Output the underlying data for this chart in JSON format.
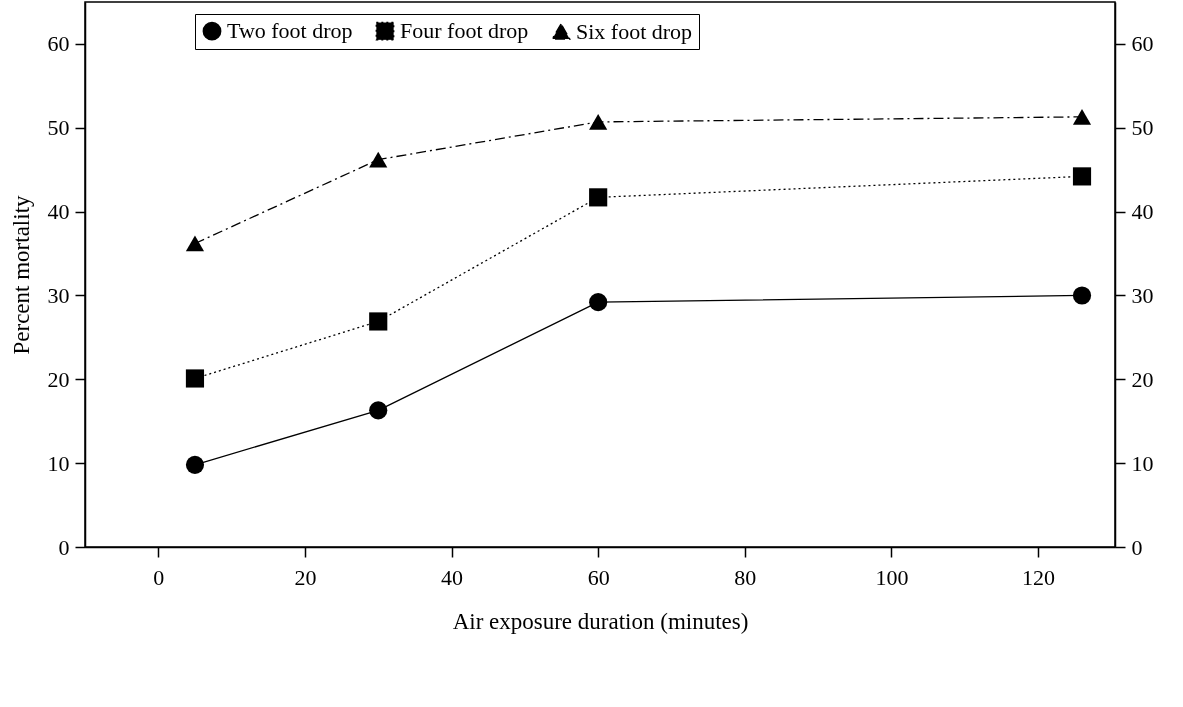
{
  "chart_data": {
    "type": "line",
    "xlabel": "Air exposure duration (minutes)",
    "ylabel": "Percent mortality",
    "x": [
      5,
      30,
      60,
      126
    ],
    "series": [
      {
        "name": "Two foot drop",
        "color": "#000000",
        "marker": "circle",
        "line_style": "solid",
        "values": [
          9.8,
          16.3,
          29.2,
          30.0
        ]
      },
      {
        "name": "Four foot drop",
        "color": "#000000",
        "marker": "square",
        "line_style": "dotted",
        "values": [
          20.1,
          26.9,
          41.7,
          44.2
        ]
      },
      {
        "name": "Six foot drop",
        "color": "#000000",
        "marker": "triangle",
        "line_style": "dashdot",
        "values": [
          36.2,
          46.2,
          50.7,
          51.3
        ]
      }
    ],
    "xlim": [
      -10,
      130.5
    ],
    "xticks": [
      0,
      20,
      40,
      60,
      80,
      100,
      120
    ],
    "ylim": [
      0,
      65
    ],
    "yticks": [
      0,
      10,
      20,
      30,
      40,
      50,
      60
    ],
    "y2lim": [
      0,
      65
    ],
    "y2ticks": [
      0,
      10,
      20,
      30,
      40,
      50,
      60
    ],
    "grid": false,
    "legend": "top"
  }
}
